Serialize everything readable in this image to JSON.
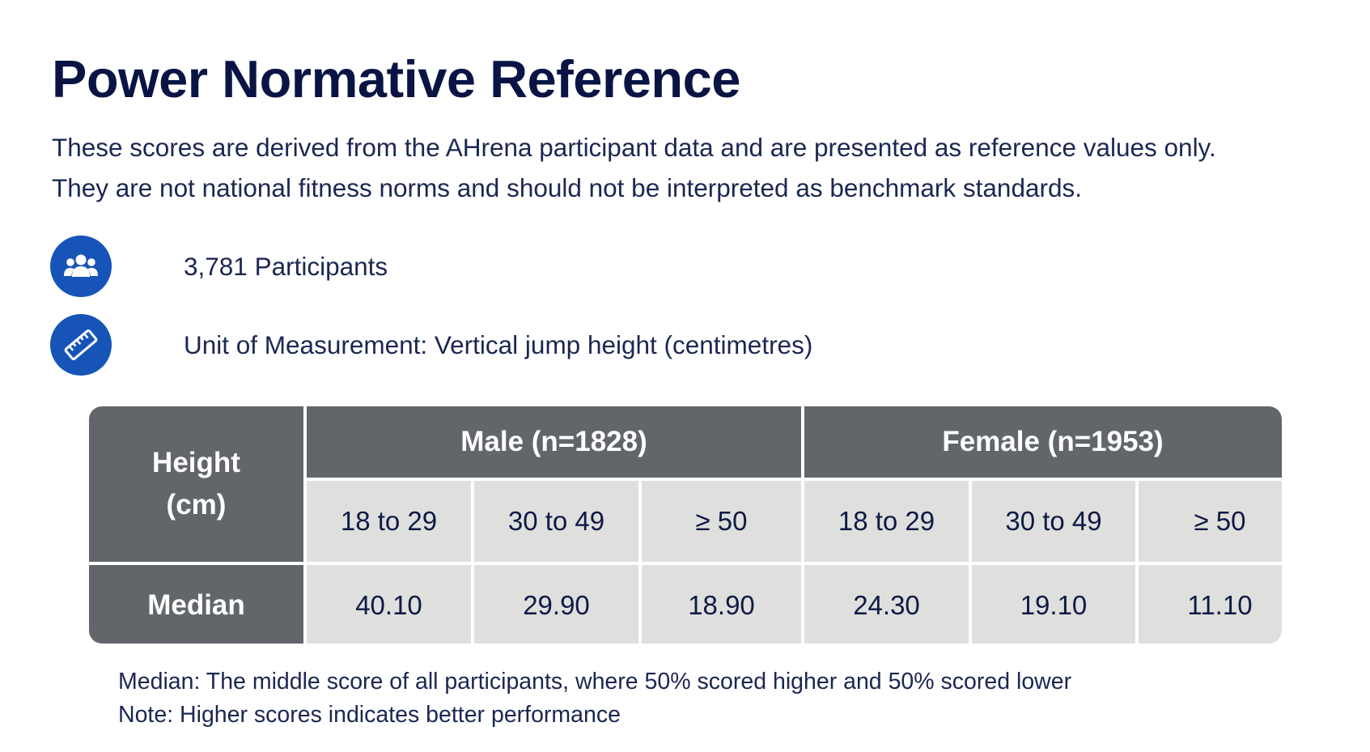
{
  "title": "Power Normative Reference",
  "intro": "These scores are derived from the AHrena participant data and are presented as reference values only. They are not national fitness norms and should not be interpreted as benchmark standards.",
  "info": {
    "participants": {
      "icon": "users-group-icon",
      "text": "3,781 Participants"
    },
    "unit": {
      "icon": "ruler-icon",
      "text": "Unit of Measurement: Vertical jump height (centimetres)"
    }
  },
  "table": {
    "corner_label_line1": "Height",
    "corner_label_line2": "(cm)",
    "groups": [
      {
        "label": "Male (n=1828)"
      },
      {
        "label": "Female (n=1953)"
      }
    ],
    "age_bands": [
      "18 to 29",
      "30 to 49",
      "≥ 50",
      "18 to 29",
      "30 to 49",
      "≥ 50"
    ],
    "rows": [
      {
        "label": "Median",
        "values": [
          "40.10",
          "29.90",
          "18.90",
          "24.30",
          "19.10",
          "11.10"
        ]
      }
    ]
  },
  "footnotes": {
    "median": "Median: The middle score of all participants, where 50% scored higher and 50% scored lower",
    "note": "Note: Higher scores indicates better performance"
  },
  "colors": {
    "icon_bg": "#1654b8",
    "header_bg": "#62666b",
    "cell_bg": "#dfdfdd",
    "title": "#0a1444"
  }
}
